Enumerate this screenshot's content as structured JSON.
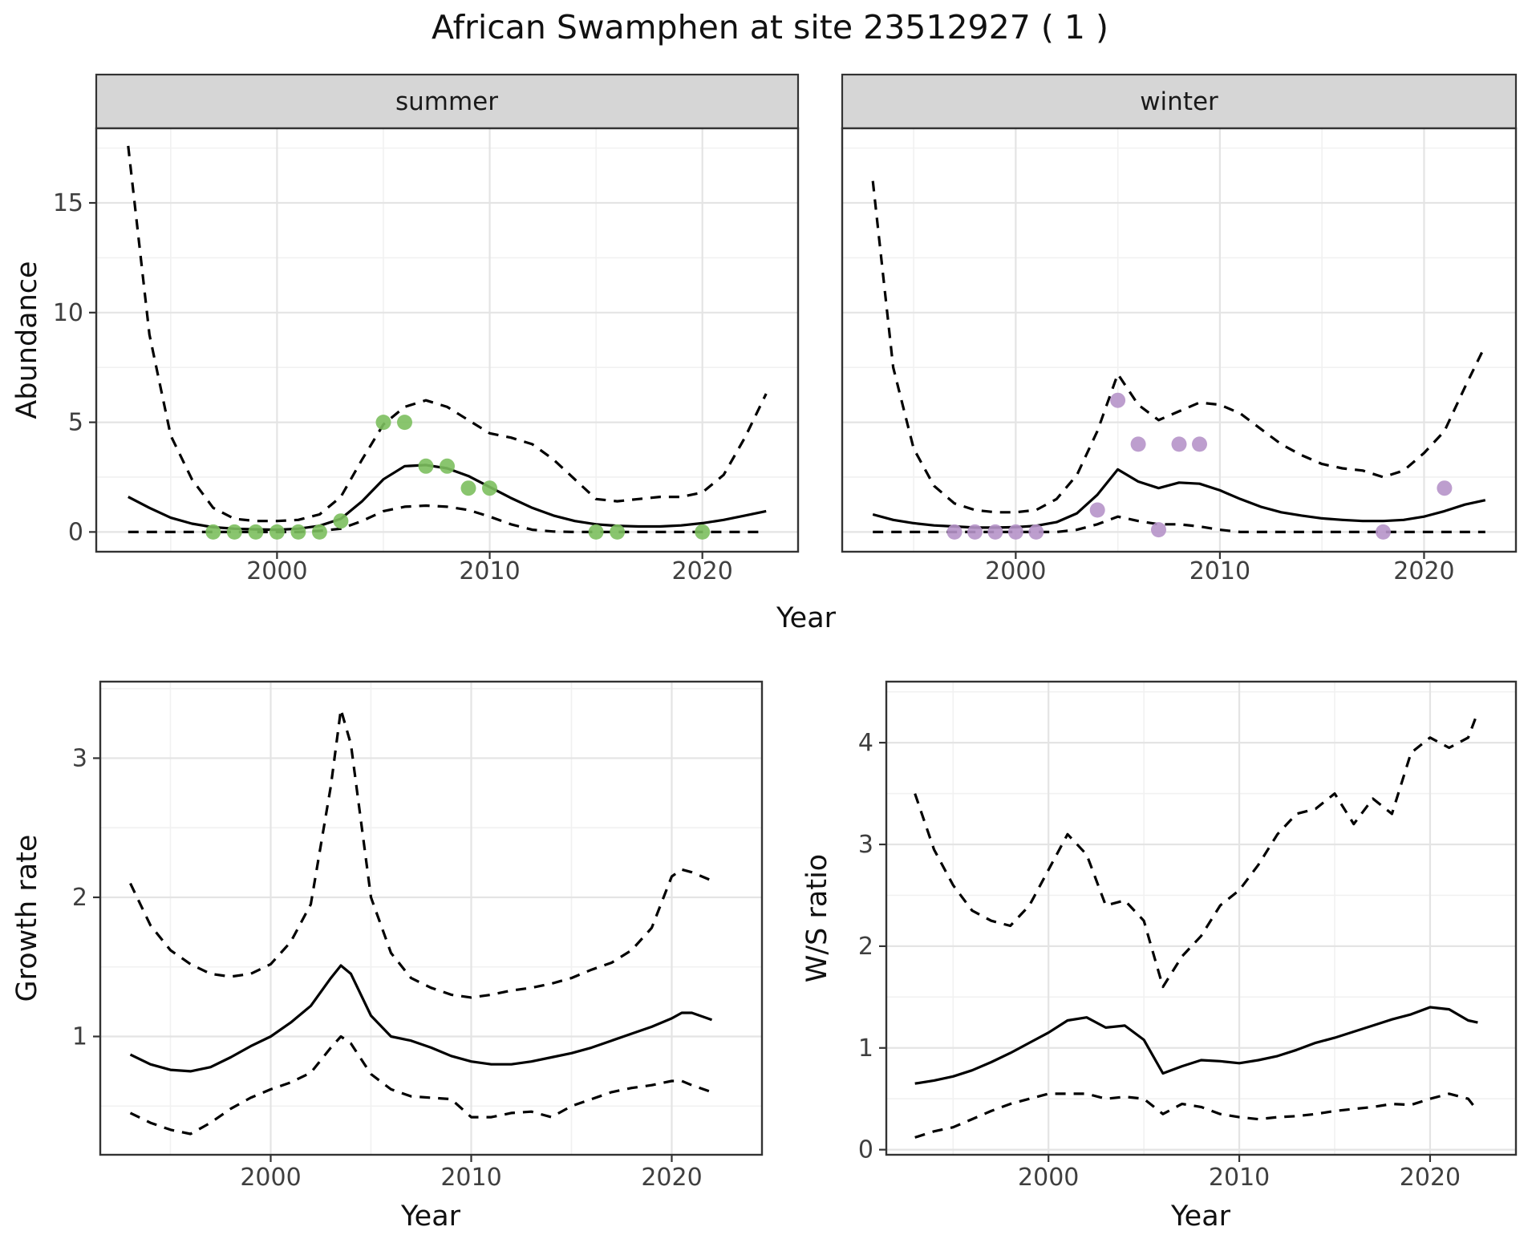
{
  "title": "African Swamphen at site 23512927 ( 1 )",
  "facets": [
    "summer",
    "winter"
  ],
  "axes": {
    "year": "Year",
    "abundance": "Abundance",
    "growth": "Growth rate",
    "ws": "W/S ratio"
  },
  "colors": {
    "line": "#000000",
    "summer_points": "#7cbf5e",
    "winter_points": "#b694c9",
    "strip_bg": "#d6d6d6",
    "grid_major": "#e4e4e4",
    "grid_minor": "#f1f1f1",
    "border": "#333333"
  },
  "chart_data": [
    {
      "id": "abundance-summer",
      "type": "line",
      "facet": "summer",
      "xlabel": "Year",
      "ylabel": "Abundance",
      "xlim": [
        1991.5,
        2024.5
      ],
      "ylim": [
        -0.9,
        18.4
      ],
      "xticks": [
        2000,
        2010,
        2020
      ],
      "yticks": [
        0,
        5,
        10,
        15
      ],
      "series": [
        {
          "name": "estimate",
          "style": "solid",
          "x": [
            1993,
            1994,
            1995,
            1996,
            1997,
            1998,
            1999,
            2000,
            2001,
            2002,
            2003,
            2004,
            2005,
            2006,
            2007,
            2008,
            2009,
            2010,
            2011,
            2012,
            2013,
            2014,
            2015,
            2016,
            2017,
            2018,
            2019,
            2020,
            2021,
            2022,
            2023
          ],
          "y": [
            1.6,
            1.1,
            0.65,
            0.38,
            0.22,
            0.15,
            0.12,
            0.1,
            0.15,
            0.28,
            0.6,
            1.4,
            2.4,
            3.0,
            3.05,
            2.9,
            2.55,
            2.05,
            1.55,
            1.1,
            0.75,
            0.5,
            0.35,
            0.28,
            0.25,
            0.25,
            0.3,
            0.4,
            0.55,
            0.75,
            0.95
          ]
        },
        {
          "name": "upper-ci",
          "style": "dashed",
          "x": [
            1993,
            1994,
            1995,
            1996,
            1997,
            1998,
            1999,
            2000,
            2001,
            2002,
            2003,
            2004,
            2005,
            2006,
            2007,
            2008,
            2009,
            2010,
            2011,
            2012,
            2013,
            2014,
            2015,
            2016,
            2017,
            2018,
            2019,
            2020,
            2021,
            2022,
            2023
          ],
          "y": [
            17.6,
            9.0,
            4.4,
            2.4,
            1.1,
            0.6,
            0.5,
            0.5,
            0.55,
            0.8,
            1.6,
            3.3,
            4.9,
            5.7,
            6.0,
            5.7,
            5.1,
            4.5,
            4.3,
            4.0,
            3.3,
            2.4,
            1.5,
            1.4,
            1.5,
            1.6,
            1.6,
            1.8,
            2.6,
            4.3,
            6.3
          ]
        },
        {
          "name": "lower-ci",
          "style": "dashed",
          "x": [
            1993,
            1994,
            1995,
            1996,
            1997,
            1998,
            1999,
            2000,
            2001,
            2002,
            2003,
            2004,
            2005,
            2006,
            2007,
            2008,
            2009,
            2010,
            2011,
            2012,
            2013,
            2014,
            2015,
            2016,
            2017,
            2018,
            2019,
            2020,
            2021,
            2022,
            2023
          ],
          "y": [
            0,
            0,
            0,
            0,
            0,
            0,
            0,
            0,
            0,
            0.05,
            0.15,
            0.5,
            0.95,
            1.15,
            1.2,
            1.15,
            1.0,
            0.7,
            0.35,
            0.1,
            0.02,
            0,
            0,
            0,
            0,
            0,
            0,
            0,
            0,
            0,
            0
          ]
        }
      ],
      "points": {
        "name": "summer-observations",
        "color": "#7cbf5e",
        "x": [
          1997,
          1998,
          1999,
          2000,
          2001,
          2002,
          2003,
          2005,
          2006,
          2007,
          2008,
          2009,
          2010,
          2015,
          2016,
          2020
        ],
        "y": [
          0,
          0,
          0,
          0,
          0,
          0,
          0.5,
          5,
          5,
          3,
          3,
          2,
          2,
          0,
          0,
          0
        ]
      }
    },
    {
      "id": "abundance-winter",
      "type": "line",
      "facet": "winter",
      "xlabel": "Year",
      "ylabel": "Abundance",
      "xlim": [
        1991.5,
        2024.5
      ],
      "ylim": [
        -0.9,
        18.4
      ],
      "xticks": [
        2000,
        2010,
        2020
      ],
      "yticks": [
        0,
        5,
        10,
        15
      ],
      "series": [
        {
          "name": "estimate",
          "style": "solid",
          "x": [
            1993,
            1994,
            1995,
            1996,
            1997,
            1998,
            1999,
            2000,
            2001,
            2002,
            2003,
            2004,
            2005,
            2006,
            2007,
            2008,
            2009,
            2010,
            2011,
            2012,
            2013,
            2014,
            2015,
            2016,
            2017,
            2018,
            2019,
            2020,
            2021,
            2022,
            2023
          ],
          "y": [
            0.8,
            0.55,
            0.4,
            0.3,
            0.25,
            0.2,
            0.2,
            0.22,
            0.28,
            0.45,
            0.85,
            1.7,
            2.85,
            2.3,
            2.0,
            2.25,
            2.2,
            1.9,
            1.5,
            1.15,
            0.9,
            0.75,
            0.62,
            0.55,
            0.5,
            0.5,
            0.55,
            0.7,
            0.95,
            1.25,
            1.45
          ]
        },
        {
          "name": "upper-ci",
          "style": "dashed",
          "x": [
            1993,
            1994,
            1995,
            1996,
            1997,
            1998,
            1999,
            2000,
            2001,
            2002,
            2003,
            2004,
            2005,
            2006,
            2007,
            2008,
            2009,
            2010,
            2011,
            2012,
            2013,
            2014,
            2015,
            2016,
            2017,
            2018,
            2019,
            2020,
            2021,
            2022,
            2023
          ],
          "y": [
            16.0,
            7.5,
            3.8,
            2.1,
            1.3,
            1.0,
            0.9,
            0.9,
            1.0,
            1.5,
            2.6,
            4.6,
            7.2,
            5.8,
            5.1,
            5.5,
            5.9,
            5.8,
            5.4,
            4.7,
            4.0,
            3.5,
            3.1,
            2.9,
            2.8,
            2.5,
            2.8,
            3.6,
            4.6,
            6.6,
            8.5
          ]
        },
        {
          "name": "lower-ci",
          "style": "dashed",
          "x": [
            1993,
            1994,
            1995,
            1996,
            1997,
            1998,
            1999,
            2000,
            2001,
            2002,
            2003,
            2004,
            2005,
            2006,
            2007,
            2008,
            2009,
            2010,
            2011,
            2012,
            2013,
            2014,
            2015,
            2016,
            2017,
            2018,
            2019,
            2020,
            2021,
            2022,
            2023
          ],
          "y": [
            0,
            0,
            0,
            0,
            0,
            0,
            0,
            0,
            0,
            0,
            0.1,
            0.35,
            0.7,
            0.5,
            0.35,
            0.35,
            0.25,
            0.1,
            0,
            0,
            0,
            0,
            0,
            0,
            0,
            0,
            0,
            0,
            0,
            0,
            0
          ]
        }
      ],
      "points": {
        "name": "winter-observations",
        "color": "#b694c9",
        "x": [
          1997,
          1998,
          1999,
          2000,
          2001,
          2004,
          2005,
          2006,
          2007,
          2008,
          2009,
          2018,
          2021
        ],
        "y": [
          0,
          0,
          0,
          0,
          0,
          1,
          6,
          4,
          0.1,
          4,
          4,
          0,
          2
        ]
      }
    },
    {
      "id": "growth-rate",
      "type": "line",
      "xlabel": "Year",
      "ylabel": "Growth rate",
      "xlim": [
        1991.5,
        2024.5
      ],
      "ylim": [
        0.15,
        3.55
      ],
      "xticks": [
        2000,
        2010,
        2020
      ],
      "yticks": [
        1,
        2,
        3
      ],
      "series": [
        {
          "name": "estimate",
          "style": "solid",
          "x": [
            1993,
            1994,
            1995,
            1996,
            1997,
            1998,
            1999,
            2000,
            2001,
            2002,
            2003,
            2003.5,
            2004,
            2005,
            2006,
            2007,
            2008,
            2009,
            2010,
            2011,
            2012,
            2013,
            2014,
            2015,
            2016,
            2017,
            2018,
            2019,
            2020,
            2020.5,
            2021,
            2022
          ],
          "y": [
            0.87,
            0.8,
            0.76,
            0.75,
            0.78,
            0.85,
            0.93,
            1.0,
            1.1,
            1.22,
            1.42,
            1.51,
            1.45,
            1.15,
            1.0,
            0.97,
            0.92,
            0.86,
            0.82,
            0.8,
            0.8,
            0.82,
            0.85,
            0.88,
            0.92,
            0.97,
            1.02,
            1.07,
            1.13,
            1.17,
            1.17,
            1.12
          ]
        },
        {
          "name": "upper-ci",
          "style": "dashed",
          "x": [
            1993,
            1994,
            1995,
            1996,
            1997,
            1998,
            1999,
            2000,
            2001,
            2002,
            2003,
            2003.5,
            2004,
            2005,
            2006,
            2007,
            2008,
            2009,
            2010,
            2011,
            2012,
            2013,
            2014,
            2015,
            2016,
            2017,
            2018,
            2019,
            2020,
            2020.5,
            2021,
            2022
          ],
          "y": [
            2.1,
            1.8,
            1.62,
            1.52,
            1.45,
            1.43,
            1.45,
            1.52,
            1.68,
            1.95,
            2.8,
            3.35,
            3.1,
            2.0,
            1.6,
            1.42,
            1.35,
            1.3,
            1.28,
            1.3,
            1.33,
            1.35,
            1.38,
            1.42,
            1.48,
            1.53,
            1.62,
            1.78,
            2.15,
            2.2,
            2.18,
            2.12
          ]
        },
        {
          "name": "lower-ci",
          "style": "dashed",
          "x": [
            1993,
            1994,
            1995,
            1996,
            1997,
            1998,
            1999,
            2000,
            2001,
            2002,
            2003,
            2003.5,
            2004,
            2005,
            2006,
            2007,
            2008,
            2009,
            2010,
            2011,
            2012,
            2013,
            2014,
            2015,
            2016,
            2017,
            2018,
            2019,
            2020,
            2020.5,
            2021,
            2022
          ],
          "y": [
            0.45,
            0.38,
            0.33,
            0.3,
            0.38,
            0.48,
            0.56,
            0.62,
            0.67,
            0.74,
            0.92,
            1.0,
            0.95,
            0.73,
            0.62,
            0.57,
            0.56,
            0.55,
            0.42,
            0.42,
            0.45,
            0.46,
            0.42,
            0.5,
            0.55,
            0.6,
            0.63,
            0.65,
            0.68,
            0.68,
            0.65,
            0.6
          ]
        }
      ]
    },
    {
      "id": "ws-ratio",
      "type": "line",
      "xlabel": "Year",
      "ylabel": "W/S ratio",
      "xlim": [
        1991.5,
        2024.5
      ],
      "ylim": [
        -0.05,
        4.6
      ],
      "xticks": [
        2000,
        2010,
        2020
      ],
      "yticks": [
        0,
        1,
        2,
        3,
        4
      ],
      "series": [
        {
          "name": "estimate",
          "style": "solid",
          "x": [
            1993,
            1994,
            1995,
            1996,
            1997,
            1998,
            1999,
            2000,
            2001,
            2002,
            2003,
            2004,
            2005,
            2006,
            2007,
            2008,
            2009,
            2010,
            2011,
            2012,
            2013,
            2014,
            2015,
            2016,
            2017,
            2018,
            2019,
            2020,
            2021,
            2022,
            2022.5
          ],
          "y": [
            0.65,
            0.68,
            0.72,
            0.78,
            0.86,
            0.95,
            1.05,
            1.15,
            1.27,
            1.3,
            1.2,
            1.22,
            1.08,
            0.75,
            0.82,
            0.88,
            0.87,
            0.85,
            0.88,
            0.92,
            0.98,
            1.05,
            1.1,
            1.16,
            1.22,
            1.28,
            1.33,
            1.4,
            1.38,
            1.27,
            1.25
          ]
        },
        {
          "name": "upper-ci",
          "style": "dashed",
          "x": [
            1993,
            1994,
            1995,
            1996,
            1997,
            1998,
            1999,
            2000,
            2001,
            2002,
            2003,
            2004,
            2005,
            2006,
            2007,
            2008,
            2009,
            2010,
            2011,
            2012,
            2013,
            2014,
            2015,
            2016,
            2017,
            2018,
            2019,
            2020,
            2021,
            2022,
            2022.5
          ],
          "y": [
            3.5,
            2.95,
            2.6,
            2.35,
            2.25,
            2.2,
            2.4,
            2.75,
            3.1,
            2.9,
            2.4,
            2.45,
            2.25,
            1.6,
            1.9,
            2.1,
            2.4,
            2.55,
            2.8,
            3.1,
            3.3,
            3.35,
            3.5,
            3.2,
            3.45,
            3.3,
            3.9,
            4.05,
            3.95,
            4.05,
            4.3
          ]
        },
        {
          "name": "lower-ci",
          "style": "dashed",
          "x": [
            1993,
            1994,
            1995,
            1996,
            1997,
            1998,
            1999,
            2000,
            2001,
            2002,
            2003,
            2004,
            2005,
            2006,
            2007,
            2008,
            2009,
            2010,
            2011,
            2012,
            2013,
            2014,
            2015,
            2016,
            2017,
            2018,
            2019,
            2020,
            2021,
            2022,
            2022.5
          ],
          "y": [
            0.12,
            0.18,
            0.22,
            0.3,
            0.38,
            0.45,
            0.5,
            0.55,
            0.55,
            0.55,
            0.5,
            0.52,
            0.5,
            0.35,
            0.45,
            0.42,
            0.35,
            0.32,
            0.3,
            0.32,
            0.33,
            0.35,
            0.38,
            0.4,
            0.42,
            0.45,
            0.44,
            0.5,
            0.55,
            0.5,
            0.38
          ]
        }
      ]
    }
  ]
}
